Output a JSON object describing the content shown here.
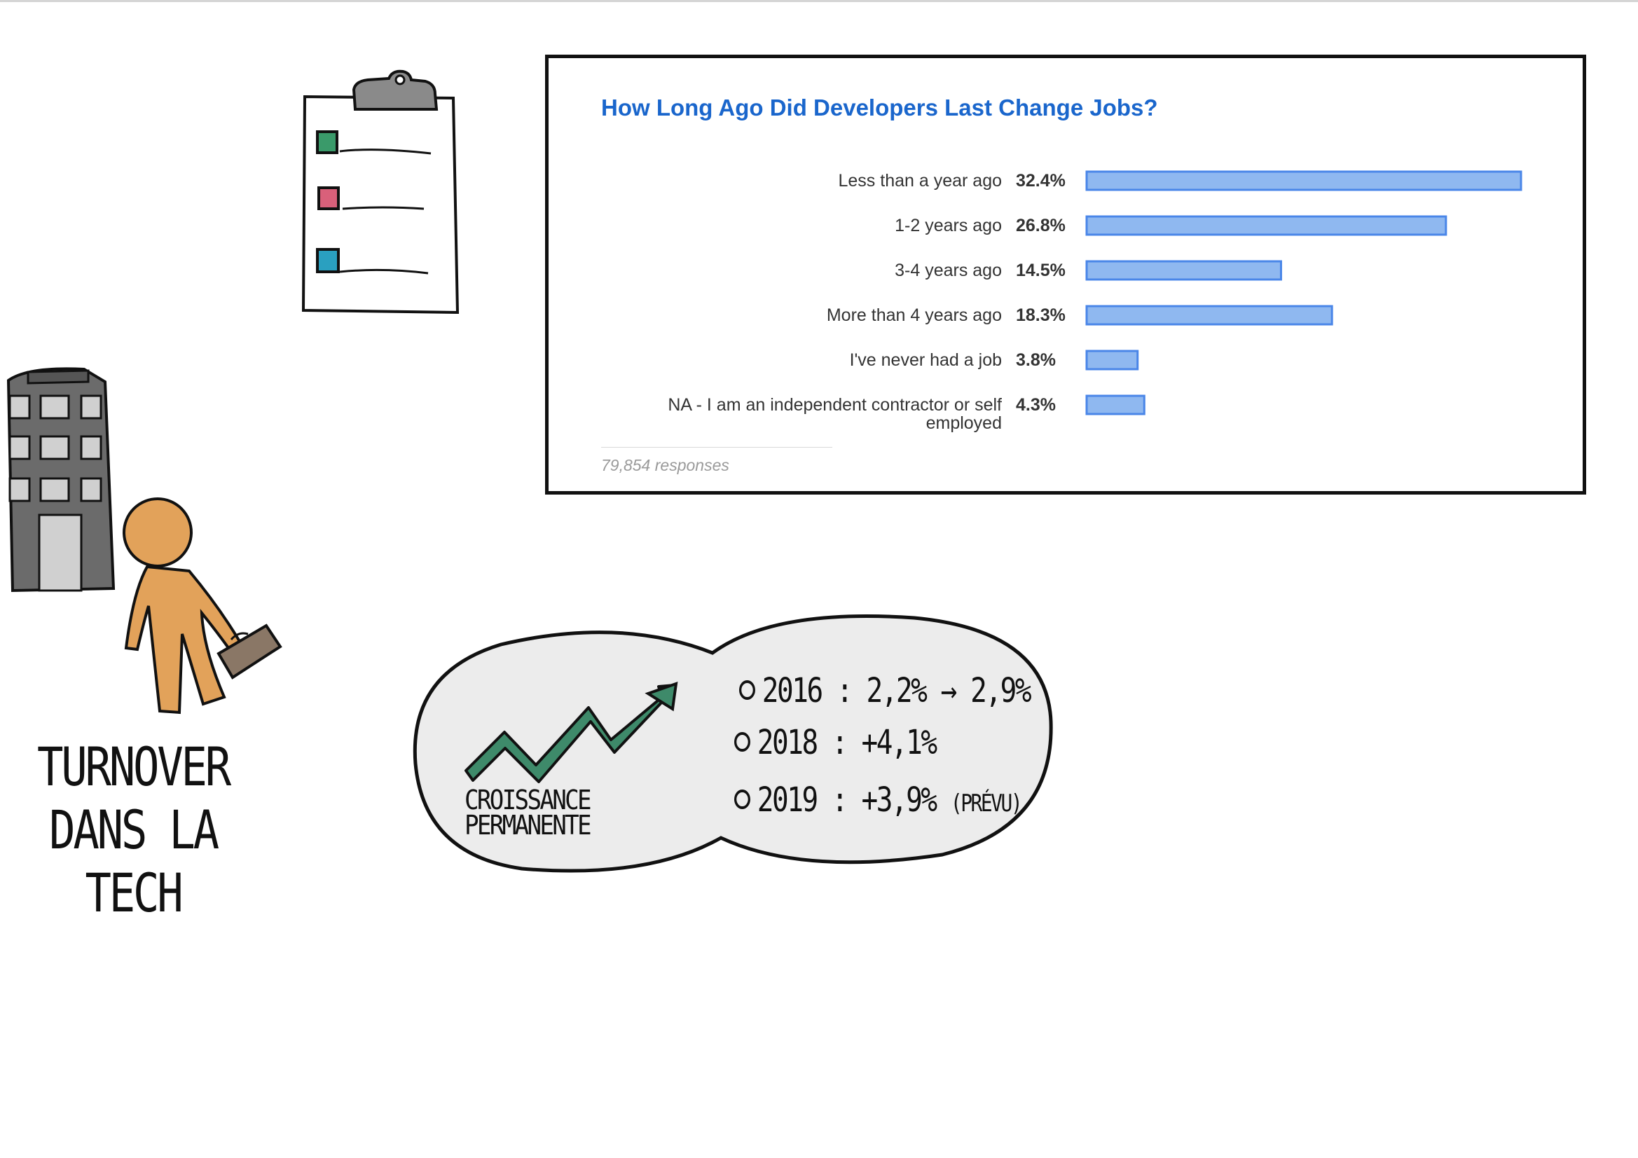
{
  "chart_data": {
    "type": "bar",
    "orientation": "horizontal",
    "title": "How Long Ago Did Developers Last Change Jobs?",
    "categories": [
      "Less than a year ago",
      "1-2 years ago",
      "3-4 years ago",
      "More than 4 years ago",
      "I've never had a job",
      "NA - I am an independent contractor or self employed"
    ],
    "category_lines": [
      [
        "Less than a year ago"
      ],
      [
        "1-2 years ago"
      ],
      [
        "3-4 years ago"
      ],
      [
        "More than 4 years ago"
      ],
      [
        "I've never had a job"
      ],
      [
        "NA - I am an independent contractor or self",
        "employed"
      ]
    ],
    "values": [
      32.4,
      26.8,
      14.5,
      18.3,
      3.8,
      4.3
    ],
    "value_labels": [
      "32.4%",
      "26.8%",
      "14.5%",
      "18.3%",
      "3.8%",
      "4.3%"
    ],
    "xlim": [
      0,
      32.4
    ],
    "grid": false,
    "colors": {
      "bar_fill": "#8fb8f0",
      "bar_stroke": "#4a86e8",
      "title": "#1a66cc",
      "label": "#333333",
      "value": "#333333"
    },
    "footer": "79,854 responses"
  },
  "sketch": {
    "heading_lines": [
      "TURNOVER",
      "DANS LA",
      "TECH"
    ],
    "bubble_caption_lines": [
      "CROISSANCE",
      "PERMANENTE"
    ],
    "stats": [
      {
        "text": "2016 : 2,2% → 2,9%",
        "note": ""
      },
      {
        "text": "2018 : +4,1%",
        "note": ""
      },
      {
        "text": "2019 : +3,9%",
        "note": "(PRÉVU)"
      }
    ],
    "colors": {
      "person": "#e2a25a",
      "building": "#6b6b6b",
      "arrow": "#3e8a6a",
      "checkbox_green": "#3a9a6a",
      "checkbox_pink": "#d9607a",
      "checkbox_teal": "#2aa0c0",
      "bubble_fill": "#ececec"
    }
  }
}
